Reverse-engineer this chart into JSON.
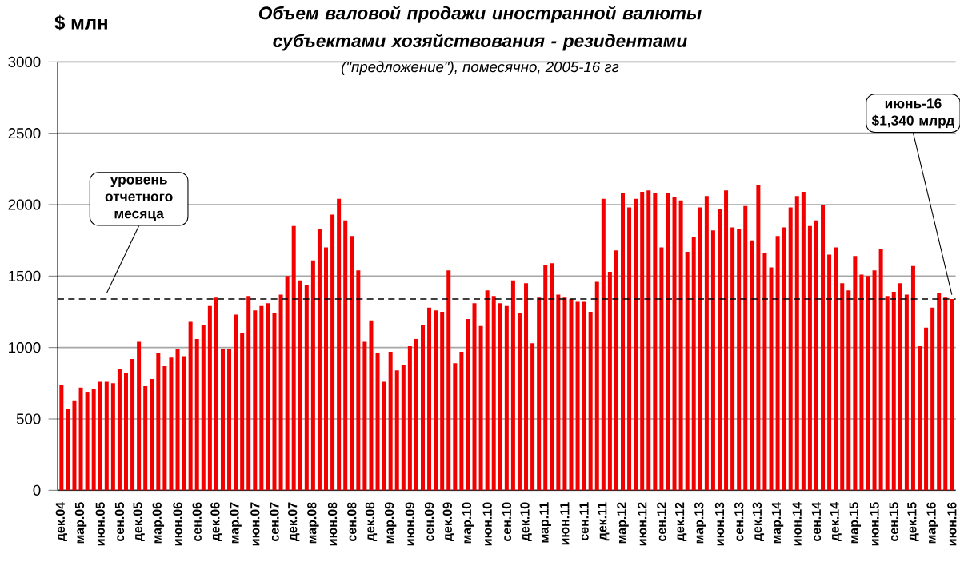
{
  "chart_data": {
    "type": "bar",
    "title": "Объем валовой продажи иностранной валюты субъектами хозяйствования - резидентами",
    "subtitle": "(\"предложение\"), помесячно, 2005-16 гг",
    "ylabel": "$ млн",
    "categories": [
      "дек.04",
      null,
      null,
      "мар.05",
      null,
      null,
      "июн.05",
      null,
      null,
      "сен.05",
      null,
      null,
      "дек.05",
      null,
      null,
      "мар.06",
      null,
      null,
      "июн.06",
      null,
      null,
      "сен.06",
      null,
      null,
      "дек.06",
      null,
      null,
      "мар.07",
      null,
      null,
      "июн.07",
      null,
      null,
      "сен.07",
      null,
      null,
      "дек.07",
      null,
      null,
      "мар.08",
      null,
      null,
      "июн.08",
      null,
      null,
      "сен.08",
      null,
      null,
      "дек.08",
      null,
      null,
      "мар.09",
      null,
      null,
      "июн.09",
      null,
      null,
      "сен.09",
      null,
      null,
      "дек.09",
      null,
      null,
      "мар.10",
      null,
      null,
      "июн.10",
      null,
      null,
      "сен.10",
      null,
      null,
      "дек.10",
      null,
      null,
      "мар.11",
      null,
      null,
      "июн.11",
      null,
      null,
      "сен.11",
      null,
      null,
      "дек.11",
      null,
      null,
      "мар.12",
      null,
      null,
      "июн.12",
      null,
      null,
      "сен.12",
      null,
      null,
      "дек.12",
      null,
      null,
      "мар.13",
      null,
      null,
      "июн.13",
      null,
      null,
      "сен.13",
      null,
      null,
      "дек.13",
      null,
      null,
      "мар.14",
      null,
      null,
      "июн.14",
      null,
      null,
      "сен.14",
      null,
      null,
      "дек.14",
      null,
      null,
      "мар.15",
      null,
      null,
      "июн.15",
      null,
      null,
      "сен.15",
      null,
      null,
      "дек.15",
      null,
      null,
      "мар.16",
      null,
      null,
      "июн.16"
    ],
    "values": [
      740,
      570,
      630,
      720,
      690,
      710,
      760,
      760,
      750,
      850,
      820,
      920,
      1040,
      730,
      780,
      960,
      870,
      930,
      990,
      940,
      1180,
      1060,
      1160,
      1290,
      1350,
      990,
      990,
      1230,
      1100,
      1360,
      1260,
      1290,
      1310,
      1240,
      1370,
      1500,
      1850,
      1470,
      1440,
      1610,
      1830,
      1700,
      1930,
      2040,
      1890,
      1780,
      1540,
      1040,
      1190,
      960,
      760,
      970,
      840,
      880,
      1010,
      1060,
      1160,
      1280,
      1260,
      1250,
      1540,
      890,
      970,
      1200,
      1310,
      1150,
      1400,
      1360,
      1310,
      1290,
      1470,
      1240,
      1450,
      1030,
      1350,
      1580,
      1590,
      1370,
      1350,
      1340,
      1320,
      1320,
      1250,
      1460,
      2040,
      1530,
      1680,
      2080,
      1980,
      2040,
      2090,
      2100,
      2080,
      1700,
      2080,
      2050,
      2030,
      1670,
      1770,
      1980,
      2060,
      1820,
      1970,
      2100,
      1840,
      1830,
      1990,
      1750,
      2140,
      1660,
      1560,
      1780,
      1840,
      1980,
      2060,
      2090,
      1850,
      1890,
      2000,
      1650,
      1700,
      1450,
      1400,
      1640,
      1510,
      1500,
      1540,
      1690,
      1360,
      1390,
      1450,
      1370,
      1570,
      1010,
      1140,
      1280,
      1380,
      1350,
      1340
    ],
    "color": "#f20000",
    "ylim": [
      0,
      3000
    ],
    "yticks": [
      0,
      500,
      1000,
      1500,
      2000,
      2500,
      3000
    ],
    "grid": "y",
    "ref_lines": [
      {
        "axis": "y",
        "value": 1340,
        "label": "уровень отчетного месяца",
        "line_style": "dashed",
        "color": "#000000"
      }
    ],
    "annotations": [
      {
        "text": "июнь-16 $1,340 млрд",
        "x": "июн.16",
        "y": 1340
      }
    ]
  }
}
